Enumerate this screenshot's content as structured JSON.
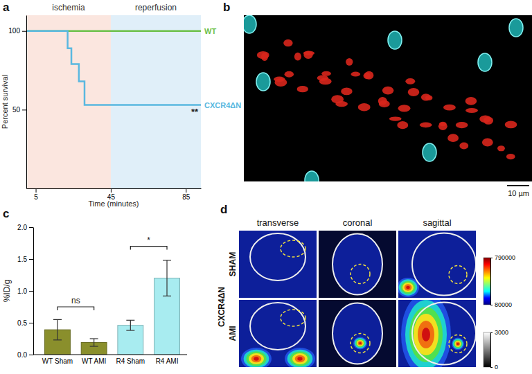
{
  "chart_data": [
    {
      "type": "line",
      "title": "a",
      "x_label": "Time (minutes)",
      "y_label": "Percent survival",
      "xlim": [
        0,
        93
      ],
      "xticks": [
        5,
        45,
        85
      ],
      "ylim": [
        0,
        110
      ],
      "yticks": [
        50,
        100
      ],
      "series": [
        {
          "name": "WT",
          "color": "#6cc04a",
          "x": [
            0,
            93
          ],
          "values": [
            100,
            100
          ]
        },
        {
          "name": "CXCR4ΔN",
          "color": "#5ab8e0",
          "x": [
            0,
            22,
            24,
            28,
            31,
            93
          ],
          "values": [
            100,
            89,
            79,
            68,
            53,
            53
          ]
        }
      ],
      "annotations": [
        {
          "text": "ischemia",
          "x": [
            0,
            45
          ],
          "color": "#fbe6df"
        },
        {
          "text": "reperfusion",
          "x": [
            45,
            93
          ],
          "color": "#e0eff9"
        },
        {
          "text": "**",
          "x": 93,
          "y": 53
        }
      ]
    },
    {
      "type": "image",
      "title": "b",
      "annotations": [
        {
          "text": "10 µm"
        }
      ]
    },
    {
      "type": "bar",
      "title": "c",
      "y_label": "%ID/g",
      "categories": [
        "WT Sham",
        "WT AMI",
        "R4 Sham",
        "R4 AMI"
      ],
      "values": [
        0.39,
        0.19,
        0.46,
        1.2
      ],
      "errors": [
        0.16,
        0.06,
        0.08,
        0.28
      ],
      "colors": [
        "#8a8f2c",
        "#8a8f2c",
        "#a8ecf0",
        "#a8ecf0"
      ],
      "ylim": [
        0,
        2.0
      ],
      "yticks": [
        {
          "value": 0,
          "label": "0.0"
        },
        0.5,
        {
          "value": 1,
          "label": "1.0"
        },
        1.5,
        {
          "value": 2,
          "label": "2.0"
        }
      ],
      "annotations": [
        {
          "text": "ns",
          "between": [
            0,
            1
          ],
          "y": 0.75
        },
        {
          "text": "*",
          "between": [
            2,
            3
          ],
          "y": 1.7
        }
      ]
    },
    {
      "type": "image",
      "title": "d",
      "group_label": "CXCR4ΔN",
      "columns": [
        "transverse",
        "coronal",
        "sagittal"
      ],
      "rows": [
        "SHAM",
        "AMI"
      ],
      "colorbars": [
        {
          "range": [
            80000,
            790000
          ],
          "ticks": [
            80000,
            790000
          ]
        },
        {
          "range": [
            0,
            3000
          ],
          "ticks": [
            0,
            3000
          ]
        }
      ]
    }
  ]
}
